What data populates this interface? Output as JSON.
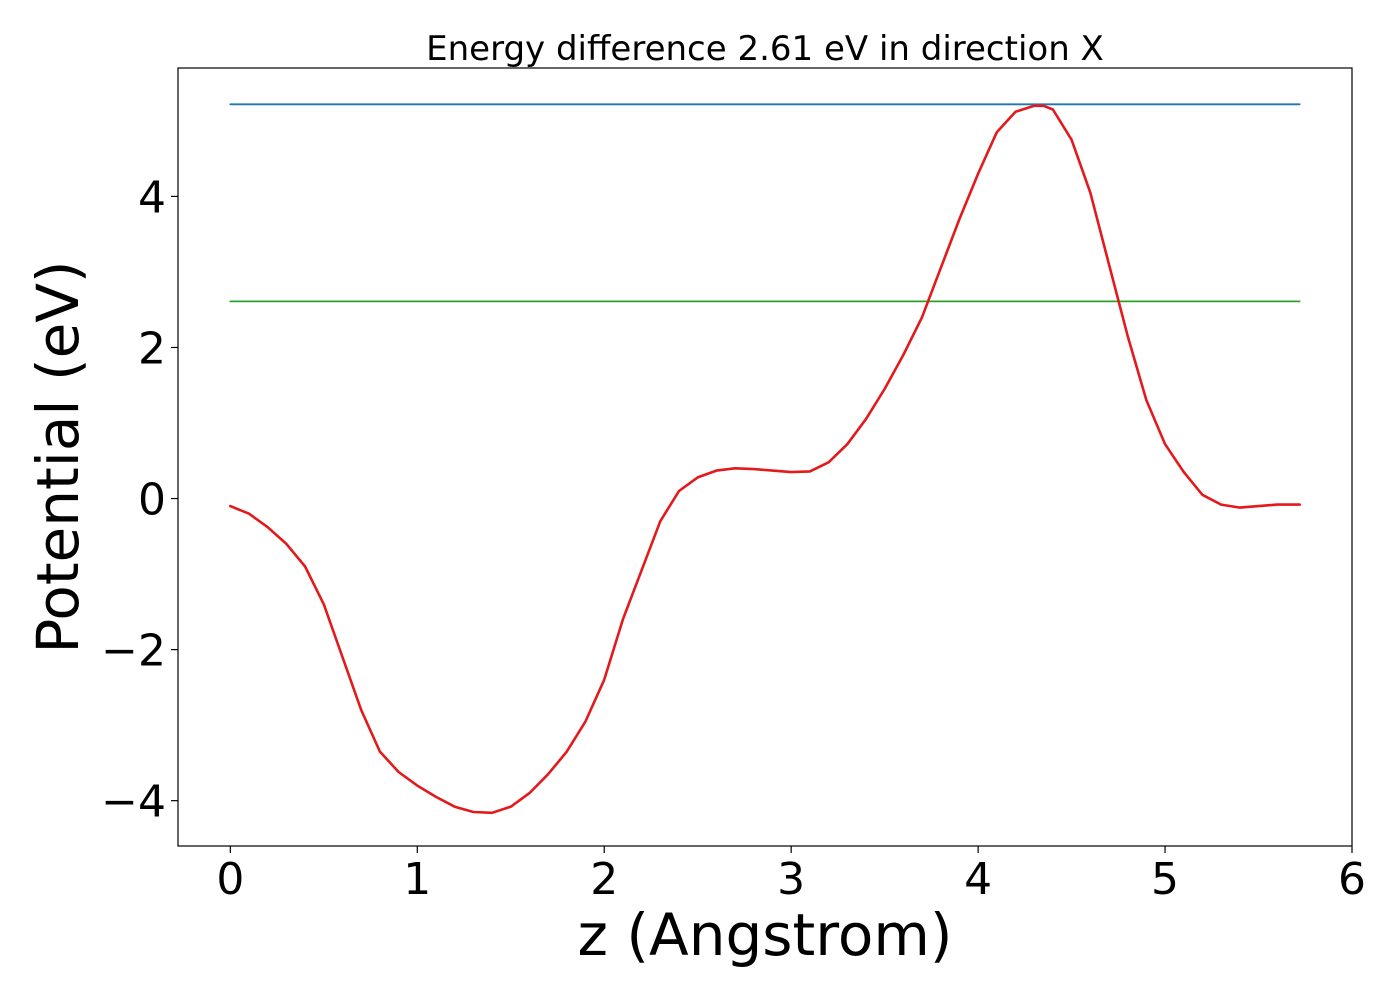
{
  "chart_data": {
    "type": "line",
    "title": "Energy difference 2.61 eV in direction X",
    "xlabel": "z (Angstrom)",
    "ylabel": "Potential (eV)",
    "xlim": [
      -0.28,
      6.0
    ],
    "ylim": [
      -4.6,
      5.7
    ],
    "xticks": [
      0,
      1,
      2,
      3,
      4,
      5,
      6
    ],
    "xtick_labels": [
      "0",
      "1",
      "2",
      "3",
      "4",
      "5",
      "6"
    ],
    "yticks": [
      -4,
      -2,
      0,
      2,
      4
    ],
    "ytick_labels": [
      "−4",
      "−2",
      "0",
      "2",
      "4"
    ],
    "grid": false,
    "series": [
      {
        "color": "#1f77b4",
        "x": [
          0,
          5.72
        ],
        "y": [
          5.22,
          5.22
        ]
      },
      {
        "color": "#2ca02c",
        "x": [
          0,
          5.72
        ],
        "y": [
          2.61,
          2.61
        ]
      },
      {
        "color": "#e31a1c",
        "x": [
          0,
          0.1,
          0.2,
          0.3,
          0.4,
          0.5,
          0.6,
          0.7,
          0.8,
          0.9,
          1.0,
          1.1,
          1.2,
          1.3,
          1.4,
          1.5,
          1.6,
          1.7,
          1.8,
          1.9,
          2.0,
          2.1,
          2.2,
          2.3,
          2.4,
          2.5,
          2.6,
          2.7,
          2.8,
          2.9,
          3.0,
          3.1,
          3.2,
          3.3,
          3.4,
          3.5,
          3.6,
          3.7,
          3.8,
          3.9,
          4.0,
          4.1,
          4.2,
          4.3,
          4.35,
          4.4,
          4.5,
          4.6,
          4.7,
          4.8,
          4.9,
          5.0,
          5.1,
          5.2,
          5.3,
          5.4,
          5.5,
          5.6,
          5.72
        ],
        "y": [
          -0.1,
          -0.2,
          -0.38,
          -0.6,
          -0.9,
          -1.4,
          -2.1,
          -2.8,
          -3.35,
          -3.62,
          -3.8,
          -3.95,
          -4.08,
          -4.15,
          -4.16,
          -4.08,
          -3.9,
          -3.65,
          -3.35,
          -2.95,
          -2.4,
          -1.6,
          -0.95,
          -0.3,
          0.1,
          0.28,
          0.37,
          0.4,
          0.39,
          0.37,
          0.35,
          0.36,
          0.48,
          0.72,
          1.05,
          1.45,
          1.9,
          2.4,
          3.05,
          3.7,
          4.3,
          4.85,
          5.12,
          5.2,
          5.2,
          5.15,
          4.75,
          4.05,
          3.1,
          2.15,
          1.3,
          0.72,
          0.35,
          0.05,
          -0.08,
          -0.12,
          -0.1,
          -0.08,
          -0.08
        ]
      }
    ]
  }
}
